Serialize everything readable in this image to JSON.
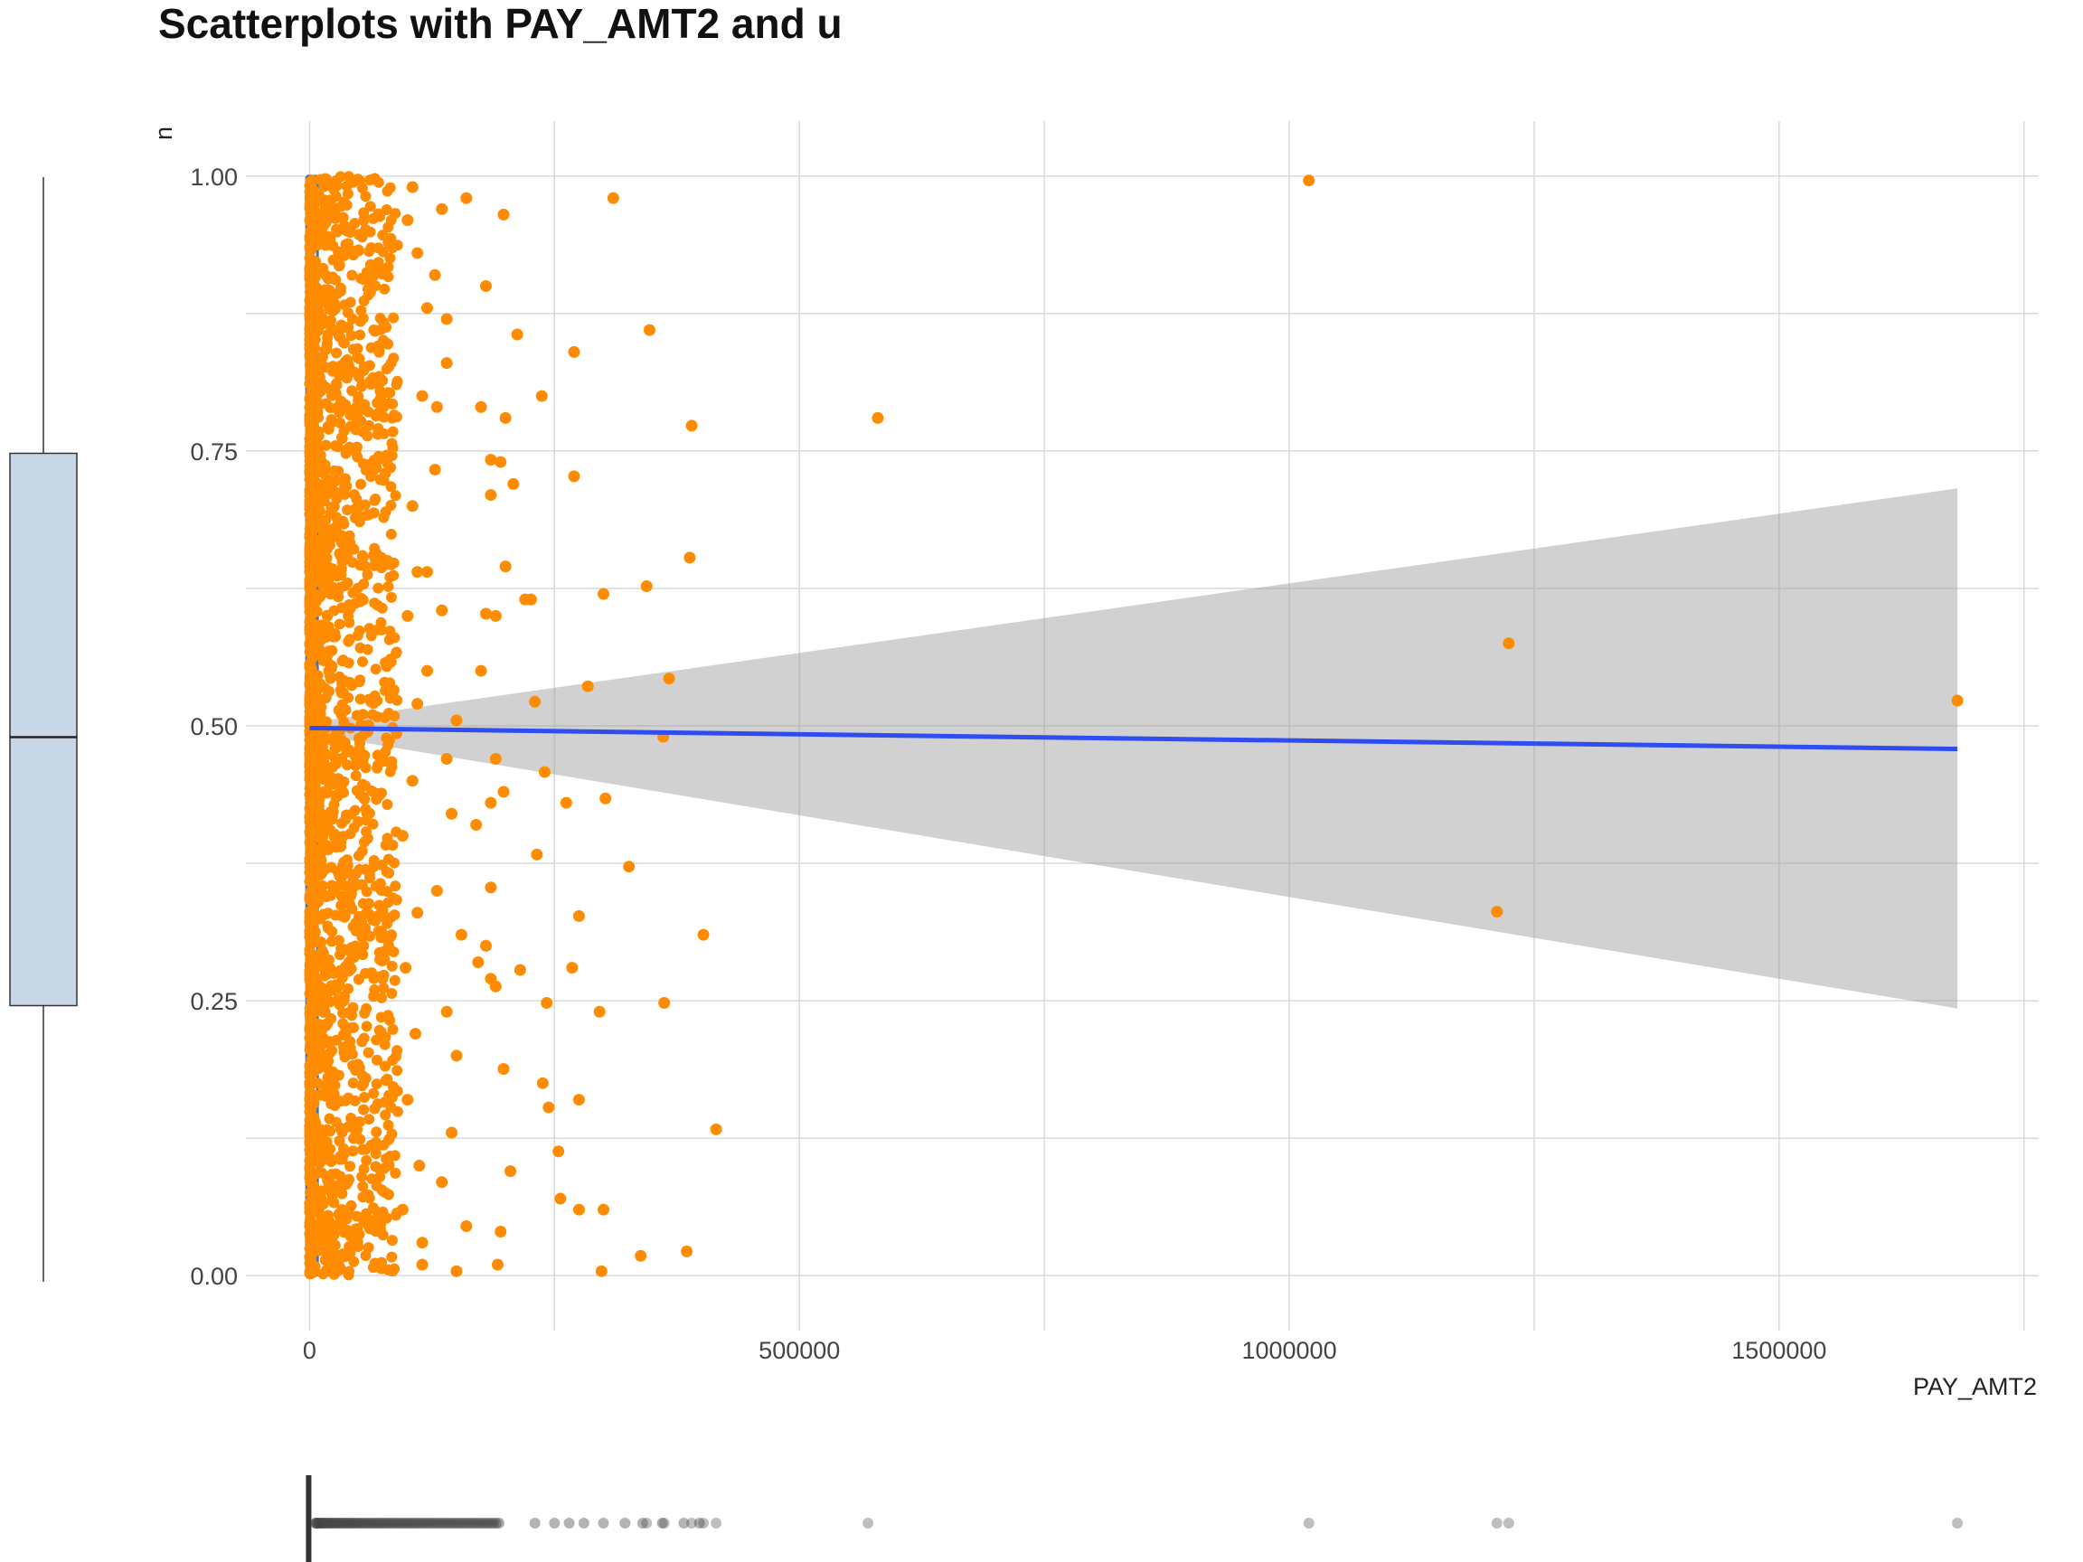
{
  "chart_data": {
    "type": "scatter",
    "title": "Scatterplots with PAY_AMT2 and u",
    "xlabel": "PAY_AMT2",
    "ylabel": "u",
    "xlim": [
      -65000,
      1765000
    ],
    "ylim": [
      -0.05,
      1.05
    ],
    "x_ticks": [
      {
        "value": 0,
        "label": "0"
      },
      {
        "value": 500000,
        "label": "500000"
      },
      {
        "value": 1000000,
        "label": "1000000"
      },
      {
        "value": 1500000,
        "label": "1500000"
      }
    ],
    "y_ticks": [
      {
        "value": 0,
        "label": "0.00"
      },
      {
        "value": 0.25,
        "label": "0.25"
      },
      {
        "value": 0.5,
        "label": "0.50"
      },
      {
        "value": 0.75,
        "label": "0.75"
      },
      {
        "value": 1.0,
        "label": "1.00"
      }
    ],
    "grid": true,
    "colors": {
      "points": "#ff8c00",
      "fit_line": "#2f4df0",
      "confidence_band": "#999999",
      "grid": "#d9d9d9",
      "boxplot_fill": "#c8d7e6",
      "violin_stroke": "#4a6fa5",
      "marginal_points": "#444444"
    },
    "series": [
      {
        "points": [
          [
            1020000,
            0.996
          ],
          [
            310000,
            0.98
          ],
          [
            580000,
            0.78
          ],
          [
            1224000,
            0.575
          ],
          [
            1682000,
            0.523
          ],
          [
            1212000,
            0.331
          ],
          [
            390000,
            0.773
          ],
          [
            347000,
            0.86
          ],
          [
            270000,
            0.84
          ],
          [
            237000,
            0.8
          ],
          [
            270000,
            0.727
          ],
          [
            388000,
            0.653
          ],
          [
            300000,
            0.62
          ],
          [
            344000,
            0.627
          ],
          [
            367000,
            0.543
          ],
          [
            284000,
            0.536
          ],
          [
            230000,
            0.522
          ],
          [
            361000,
            0.49
          ],
          [
            240000,
            0.458
          ],
          [
            302000,
            0.434
          ],
          [
            262000,
            0.43
          ],
          [
            232000,
            0.383
          ],
          [
            326000,
            0.372
          ],
          [
            275000,
            0.327
          ],
          [
            402000,
            0.31
          ],
          [
            268000,
            0.28
          ],
          [
            215000,
            0.278
          ],
          [
            296000,
            0.24
          ],
          [
            362000,
            0.248
          ],
          [
            242000,
            0.248
          ],
          [
            415000,
            0.133
          ],
          [
            238000,
            0.175
          ],
          [
            275000,
            0.16
          ],
          [
            244000,
            0.153
          ],
          [
            254000,
            0.113
          ],
          [
            256000,
            0.07
          ],
          [
            275000,
            0.06
          ],
          [
            300000,
            0.06
          ],
          [
            338000,
            0.018
          ],
          [
            385000,
            0.022
          ],
          [
            298000,
            0.004
          ],
          [
            198000,
            0.965
          ],
          [
            160000,
            0.98
          ],
          [
            180000,
            0.9
          ],
          [
            212000,
            0.856
          ],
          [
            175000,
            0.79
          ],
          [
            200000,
            0.78
          ],
          [
            185000,
            0.742
          ],
          [
            195000,
            0.74
          ],
          [
            208000,
            0.72
          ],
          [
            185000,
            0.71
          ],
          [
            200000,
            0.645
          ],
          [
            220000,
            0.615
          ],
          [
            226000,
            0.615
          ],
          [
            180000,
            0.602
          ],
          [
            190000,
            0.6
          ],
          [
            175000,
            0.55
          ],
          [
            190000,
            0.47
          ],
          [
            198000,
            0.44
          ],
          [
            185000,
            0.43
          ],
          [
            170000,
            0.41
          ],
          [
            185000,
            0.353
          ],
          [
            180000,
            0.3
          ],
          [
            172000,
            0.285
          ],
          [
            190000,
            0.263
          ],
          [
            185000,
            0.27
          ],
          [
            198000,
            0.188
          ],
          [
            205000,
            0.095
          ],
          [
            195000,
            0.04
          ],
          [
            192000,
            0.01
          ],
          [
            150000,
            0.004
          ],
          [
            115000,
            0.01
          ],
          [
            160000,
            0.045
          ],
          [
            135000,
            0.085
          ],
          [
            145000,
            0.13
          ],
          [
            150000,
            0.2
          ],
          [
            140000,
            0.24
          ],
          [
            155000,
            0.31
          ],
          [
            130000,
            0.35
          ],
          [
            145000,
            0.42
          ],
          [
            140000,
            0.47
          ],
          [
            150000,
            0.505
          ],
          [
            120000,
            0.55
          ],
          [
            135000,
            0.605
          ],
          [
            120000,
            0.64
          ],
          [
            128000,
            0.733
          ],
          [
            130000,
            0.79
          ],
          [
            140000,
            0.83
          ],
          [
            140000,
            0.87
          ],
          [
            128000,
            0.91
          ],
          [
            135000,
            0.97
          ],
          [
            105000,
            0.99
          ],
          [
            100000,
            0.96
          ],
          [
            110000,
            0.93
          ],
          [
            120000,
            0.88
          ],
          [
            115000,
            0.8
          ],
          [
            105000,
            0.7
          ],
          [
            110000,
            0.64
          ],
          [
            100000,
            0.6
          ],
          [
            110000,
            0.52
          ],
          [
            105000,
            0.45
          ],
          [
            95000,
            0.4
          ],
          [
            110000,
            0.33
          ],
          [
            98000,
            0.28
          ],
          [
            108000,
            0.22
          ],
          [
            100000,
            0.16
          ],
          [
            112000,
            0.1
          ],
          [
            95000,
            0.06
          ],
          [
            115000,
            0.03
          ]
        ]
      }
    ],
    "fit_line": {
      "x": [
        0,
        1682000
      ],
      "y": [
        0.498,
        0.479
      ]
    },
    "confidence_band": {
      "x": [
        0,
        1682000
      ],
      "lower": [
        0.493,
        0.243
      ],
      "upper": [
        0.503,
        0.716
      ]
    },
    "dense_region": {
      "x_max": 90000,
      "count": 2200
    },
    "marginal_y_boxplot": {
      "min": 0.0,
      "q1": 0.25,
      "median": 0.493,
      "q3": 0.75,
      "max": 1.0
    },
    "marginal_x_boxplot": {
      "median": 2000,
      "outliers": [
        570000,
        1020000,
        1212000,
        1224000,
        1682000,
        415000,
        402000,
        390000,
        362000,
        344000
      ]
    }
  }
}
